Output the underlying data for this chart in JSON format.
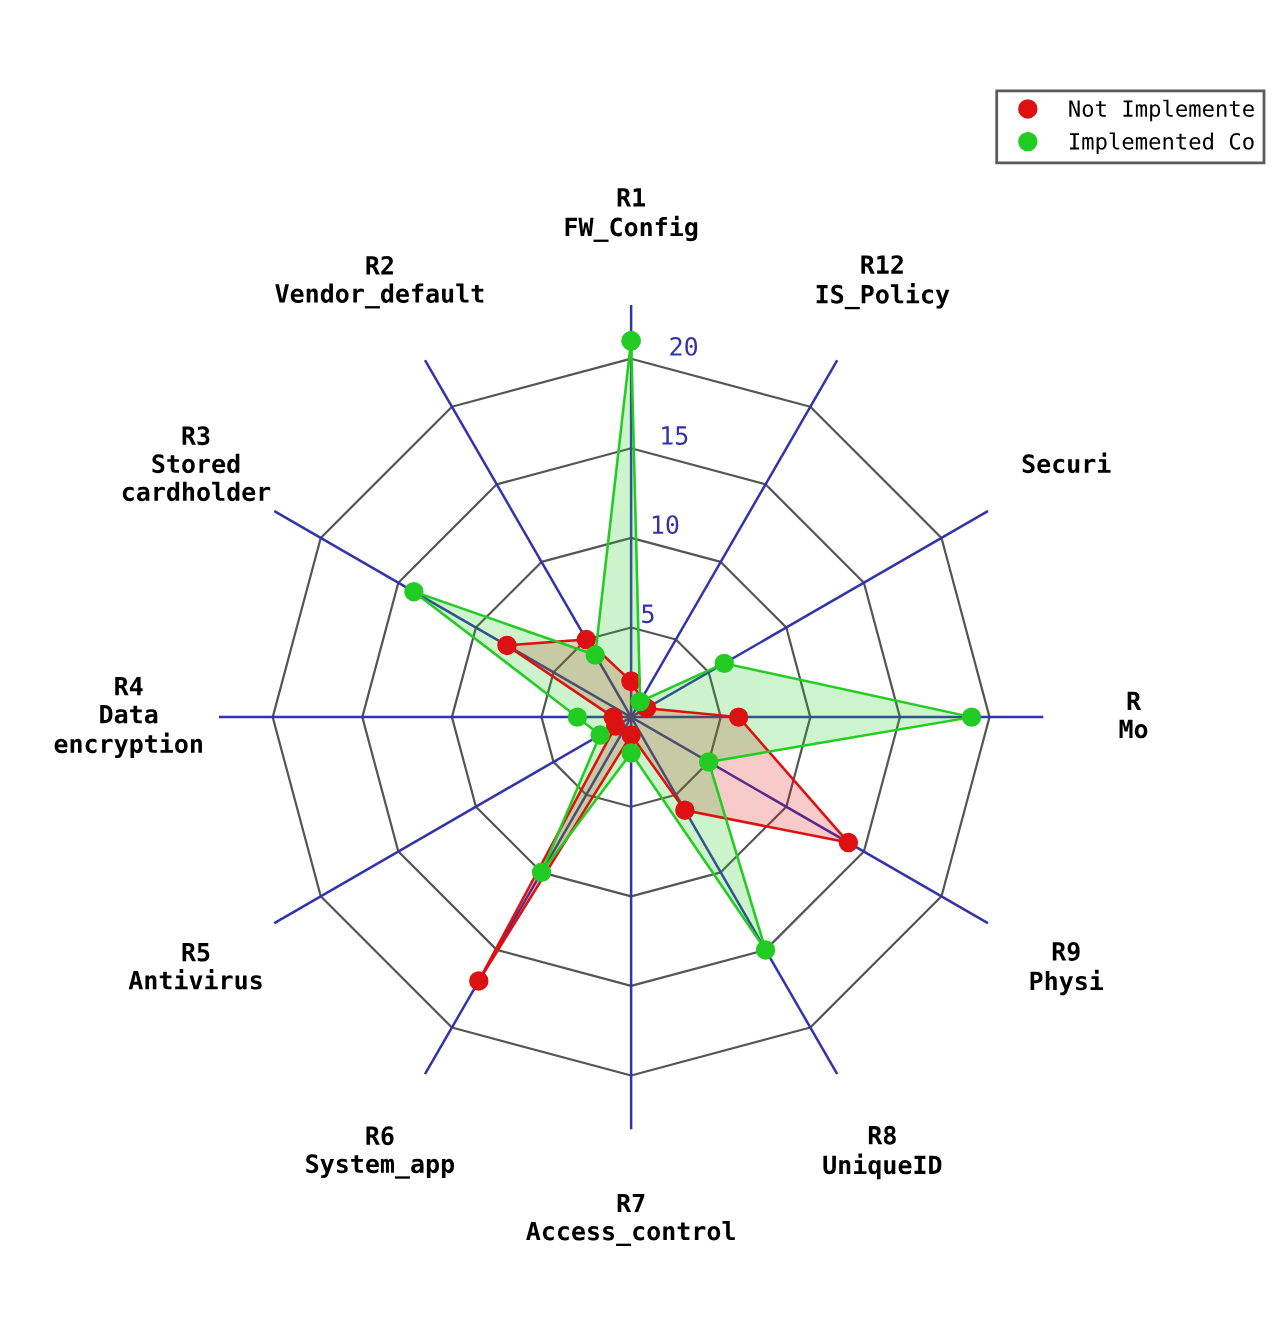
{
  "chart_data": {
    "type": "radar",
    "categories": [
      "R1\nFW_Config",
      "R12\nIS_Policy",
      "Securi",
      "R\nMo",
      "R9\nPhysi",
      "R8\nUniqueID",
      "R7\nAccess_control",
      "R6\nSystem_app",
      "R5\nAntivirus",
      "R4\nData\nencryption",
      "R3\nStored\ncardholder",
      "R2\nVendor_default"
    ],
    "series": [
      {
        "name": "Not Implemente",
        "color": "#dd1111",
        "values": [
          2,
          null,
          1,
          6,
          14,
          6,
          1,
          17,
          1,
          1,
          8,
          5
        ]
      },
      {
        "name": "Implemented Co",
        "color": "#22cc22",
        "values": [
          21,
          1,
          6,
          19,
          5,
          15,
          2,
          10,
          2,
          3,
          14,
          4
        ]
      }
    ],
    "ylim": [
      0,
      23
    ],
    "yticks": [
      5,
      10,
      15,
      20
    ],
    "grid": true,
    "legend": "top right",
    "marker": "circle"
  }
}
